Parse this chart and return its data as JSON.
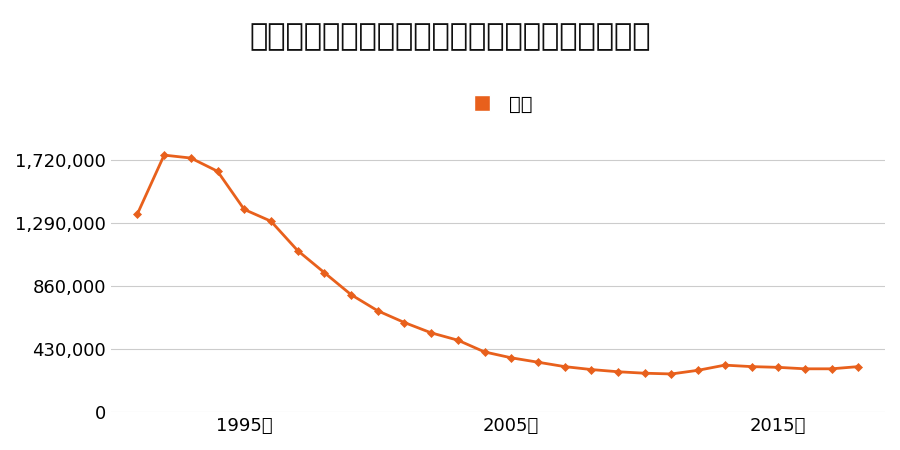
{
  "title": "宮城県仙台市若林区新寺１丁目７番４の地価推移",
  "legend_label": "価格",
  "line_color": "#e8601c",
  "marker_color": "#e8601c",
  "background_color": "#ffffff",
  "years": [
    1991,
    1992,
    1993,
    1994,
    1995,
    1996,
    1997,
    1998,
    1999,
    2000,
    2001,
    2002,
    2003,
    2004,
    2005,
    2006,
    2007,
    2008,
    2009,
    2010,
    2011,
    2012,
    2013,
    2014,
    2015,
    2016,
    2017,
    2018
  ],
  "values": [
    1350000,
    1750000,
    1730000,
    1640000,
    1380000,
    1300000,
    1100000,
    950000,
    800000,
    690000,
    610000,
    540000,
    490000,
    410000,
    370000,
    340000,
    310000,
    290000,
    275000,
    265000,
    260000,
    285000,
    320000,
    310000,
    305000,
    295000,
    295000,
    310000
  ],
  "yticks": [
    0,
    430000,
    860000,
    1290000,
    1720000
  ],
  "ytick_labels": [
    "0",
    "430,000",
    "860,000",
    "1,290,000",
    "1,720,000"
  ],
  "xtick_years": [
    1995,
    2005,
    2015
  ],
  "xtick_labels": [
    "1995年",
    "2005年",
    "2015年"
  ],
  "ylim": [
    0,
    1900000
  ],
  "xlim_start": 1990,
  "xlim_end": 2019,
  "title_fontsize": 22,
  "legend_fontsize": 14,
  "tick_fontsize": 13,
  "grid_color": "#cccccc"
}
